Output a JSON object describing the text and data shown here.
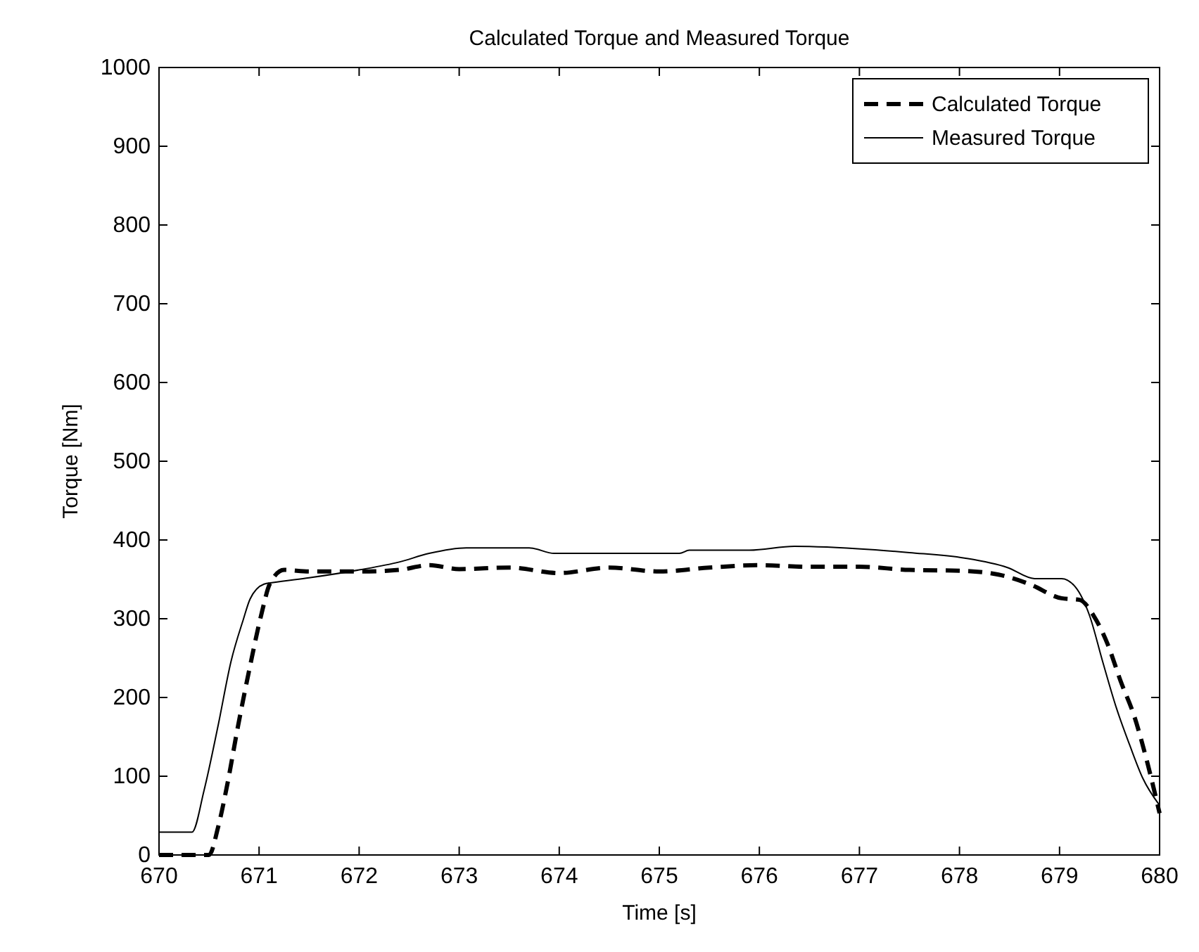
{
  "chart_data": {
    "type": "line",
    "title": "Calculated Torque and Measured Torque",
    "xlabel": "Time [s]",
    "ylabel": "Torque [Nm]",
    "xlim": [
      670,
      680
    ],
    "xticks": [
      670,
      671,
      672,
      673,
      674,
      675,
      676,
      677,
      678,
      679,
      680
    ],
    "ylim": [
      0,
      1000
    ],
    "yticks": [
      0,
      100,
      200,
      300,
      400,
      500,
      600,
      700,
      800,
      900,
      1000
    ],
    "grid": false,
    "legend": "top right",
    "marker": "none",
    "series": [
      {
        "name": "Calculated Torque",
        "color": "#000000",
        "line_style": "dashed",
        "x": [
          670,
          670.5,
          670.59,
          670.68,
          670.79,
          670.91,
          671.02,
          671.11,
          671.25,
          671.5,
          672,
          672.4,
          672.7,
          673,
          673.5,
          674,
          674.5,
          675,
          675.5,
          676,
          676.5,
          677,
          677.5,
          678,
          678.39,
          678.7,
          679.02,
          679.2,
          679.34,
          679.48,
          679.61,
          679.75,
          679.88,
          680
        ],
        "values": [
          0,
          0,
          35,
          88,
          164,
          240,
          304,
          345,
          362,
          360,
          360,
          362,
          368,
          363,
          365,
          358,
          365,
          360,
          365,
          368,
          366,
          366,
          362,
          361,
          356,
          344,
          326,
          324,
          304,
          268,
          221,
          175,
          116,
          53
        ]
      },
      {
        "name": "Measured Torque",
        "color": "#000000",
        "line_style": "solid",
        "x": [
          670,
          670.33,
          670.45,
          670.59,
          670.72,
          670.84,
          670.91,
          671.05,
          671.14,
          671.5,
          672,
          672.4,
          672.7,
          673.07,
          673.7,
          673.95,
          675.2,
          675.3,
          675.9,
          676.35,
          677.1,
          677.5,
          678.05,
          678.48,
          678.75,
          679.02,
          679.16,
          679.3,
          679.43,
          679.57,
          679.7,
          679.83,
          680
        ],
        "values": [
          29,
          29,
          82,
          164,
          246,
          298,
          325,
          344,
          346,
          352,
          362,
          372,
          383,
          390,
          390,
          383,
          383,
          387,
          387,
          392,
          388,
          384,
          377,
          365,
          351,
          351,
          340,
          304,
          246,
          186,
          140,
          98,
          63
        ]
      }
    ]
  }
}
